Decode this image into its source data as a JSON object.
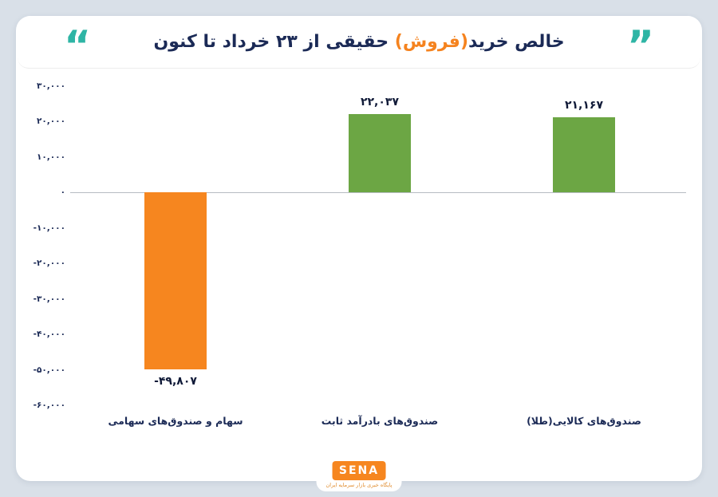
{
  "page": {
    "background": "#d9e0e8",
    "card_background": "#ffffff"
  },
  "header": {
    "quote_open": "“",
    "quote_close": "”",
    "quote_color": "#2eb5a5",
    "title_part_1": "خالص خرید",
    "title_part_2": "(فروش)",
    "title_part_3": " حقیقی از ۲۳ خرداد تا کنون",
    "title_color": "#1b2a56",
    "highlight_color": "#f5831f"
  },
  "chart_data": {
    "type": "bar",
    "title": "خالص خرید(فروش) حقیقی از ۲۳ خرداد تا کنون",
    "categories": [
      "سهام و صندوق‌های سهامی",
      "صندوق‌های بادرآمد ثابت",
      "صندوق‌های کالایی(طلا)"
    ],
    "values": [
      -49807,
      22037,
      21167
    ],
    "value_labels": [
      "-۴۹,۸۰۷",
      "۲۲,۰۳۷",
      "۲۱,۱۶۷"
    ],
    "bar_colors": [
      "#f6861f",
      "#6ca644",
      "#6ca644"
    ],
    "ylim": [
      -60000,
      30000
    ],
    "yticks": [
      30000,
      20000,
      10000,
      0,
      -10000,
      -20000,
      -30000,
      -40000,
      -50000,
      -60000
    ],
    "ytick_labels": [
      "۳۰,۰۰۰",
      "۲۰,۰۰۰",
      "۱۰,۰۰۰",
      "۰",
      "-۱۰,۰۰۰",
      "-۲۰,۰۰۰",
      "-۳۰,۰۰۰",
      "-۴۰,۰۰۰",
      "-۵۰,۰۰۰",
      "-۶۰,۰۰۰"
    ],
    "grid": false,
    "zero_line_color": "#b7bcc2",
    "legend": "none"
  },
  "footer": {
    "logo_text": "SENA",
    "logo_color": "#f6861f",
    "logo_subtext": "پایگاه خبری بازار سرمایه ایران"
  }
}
